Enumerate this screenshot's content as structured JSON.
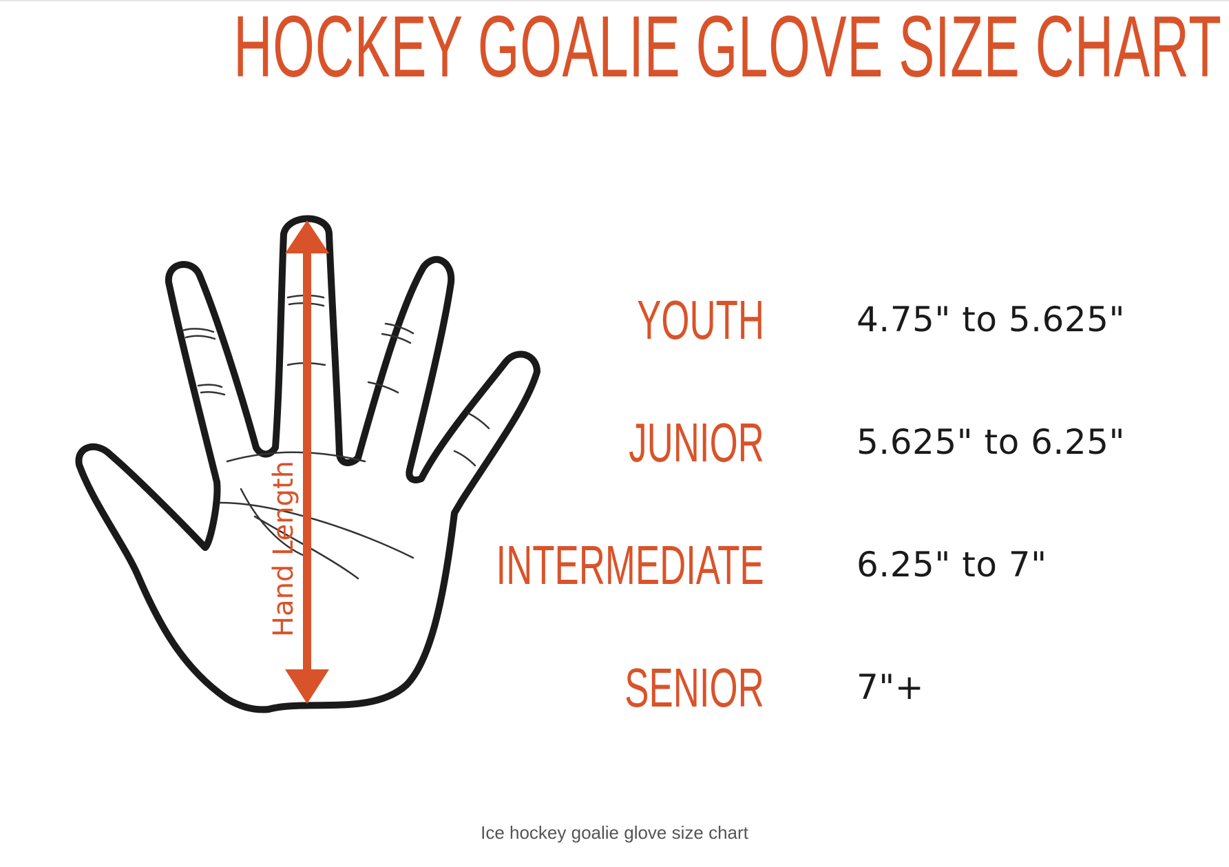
{
  "title": "HOCKEY GOALIE GLOVE SIZE CHART",
  "diagram": {
    "arrow_label": "Hand Length"
  },
  "sizes": [
    {
      "label": "YOUTH",
      "range": "4.75\" to 5.625\""
    },
    {
      "label": "JUNIOR",
      "range": "5.625\" to 6.25\""
    },
    {
      "label": "INTERMEDIATE",
      "range": "6.25\" to 7\""
    },
    {
      "label": "SENIOR",
      "range": "7\"+"
    }
  ],
  "caption": "Ice hockey goalie glove size chart",
  "colors": {
    "accent": "#d9532a",
    "outline": "#1a1a1a",
    "text": "#1a1a1a",
    "caption": "#555555"
  },
  "icons": {
    "hand": "hand-outline-icon",
    "arrow": "double-arrow-icon"
  }
}
